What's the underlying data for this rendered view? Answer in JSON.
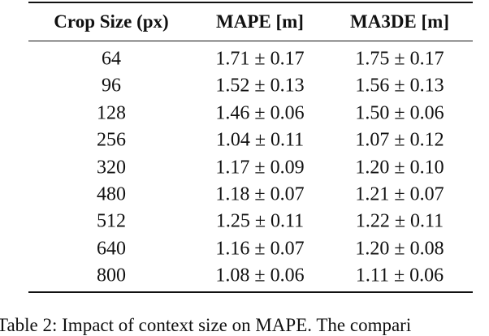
{
  "table": {
    "header": [
      "Crop Size (px)",
      "MAPE [m]",
      "MA3DE [m]"
    ],
    "rows": [
      [
        "64",
        "1.71 ± 0.17",
        "1.75 ± 0.17"
      ],
      [
        "96",
        "1.52 ± 0.13",
        "1.56 ± 0.13"
      ],
      [
        "128",
        "1.46 ± 0.06",
        "1.50 ± 0.06"
      ],
      [
        "256",
        "1.04 ± 0.11",
        "1.07 ± 0.12"
      ],
      [
        "320",
        "1.17 ± 0.09",
        "1.20 ± 0.10"
      ],
      [
        "480",
        "1.18 ± 0.07",
        "1.21 ± 0.07"
      ],
      [
        "512",
        "1.25 ± 0.11",
        "1.22 ± 0.11"
      ],
      [
        "640",
        "1.16 ± 0.07",
        "1.20 ± 0.08"
      ],
      [
        "800",
        "1.08 ± 0.06",
        "1.11 ± 0.06"
      ]
    ]
  },
  "caption": "Table 2: Impact of context size on MAPE. The compari"
}
